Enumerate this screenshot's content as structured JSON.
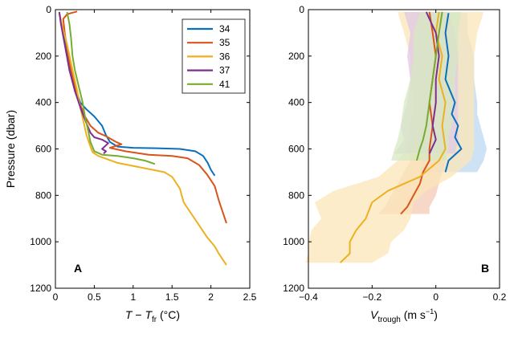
{
  "chart_data": [
    {
      "type": "line",
      "panel": "A",
      "xlabel_parts": [
        "T",
        " − ",
        "T",
        "fr",
        " (°C)"
      ],
      "ylabel": "Pressure (dbar)",
      "xlim": [
        0,
        2.5
      ],
      "ylim": [
        0,
        1200
      ],
      "y_inverted": true,
      "xticks": [
        0,
        0.5,
        1,
        1.5,
        2,
        2.5
      ],
      "xtick_labels": [
        "0",
        "0.5",
        "1",
        "1.5",
        "2",
        "2.5"
      ],
      "yticks": [
        0,
        200,
        400,
        600,
        800,
        1000,
        1200
      ],
      "ytick_labels": [
        "0",
        "200",
        "400",
        "600",
        "800",
        "1000",
        "1200"
      ],
      "legend_position": "top-right",
      "series": [
        {
          "name": "34",
          "color": "#0a6fbd",
          "points": [
            [
              0.05,
              15
            ],
            [
              0.08,
              60
            ],
            [
              0.12,
              140
            ],
            [
              0.18,
              240
            ],
            [
              0.25,
              330
            ],
            [
              0.32,
              400
            ],
            [
              0.4,
              430
            ],
            [
              0.5,
              460
            ],
            [
              0.6,
              500
            ],
            [
              0.65,
              540
            ],
            [
              0.7,
              570
            ],
            [
              0.8,
              590
            ],
            [
              1.0,
              595
            ],
            [
              1.3,
              597
            ],
            [
              1.6,
              600
            ],
            [
              1.8,
              610
            ],
            [
              1.9,
              630
            ],
            [
              1.96,
              660
            ],
            [
              2.0,
              690
            ],
            [
              2.05,
              715
            ]
          ]
        },
        {
          "name": "35",
          "color": "#d9541a",
          "points": [
            [
              0.28,
              8
            ],
            [
              0.2,
              15
            ],
            [
              0.15,
              20
            ],
            [
              0.1,
              40
            ],
            [
              0.12,
              100
            ],
            [
              0.18,
              230
            ],
            [
              0.25,
              330
            ],
            [
              0.32,
              410
            ],
            [
              0.38,
              460
            ],
            [
              0.45,
              500
            ],
            [
              0.55,
              530
            ],
            [
              0.65,
              545
            ],
            [
              0.78,
              570
            ],
            [
              0.85,
              580
            ],
            [
              0.7,
              595
            ],
            [
              0.9,
              610
            ],
            [
              1.2,
              625
            ],
            [
              1.5,
              630
            ],
            [
              1.7,
              640
            ],
            [
              1.85,
              670
            ],
            [
              1.95,
              710
            ],
            [
              2.05,
              760
            ],
            [
              2.1,
              820
            ],
            [
              2.15,
              870
            ],
            [
              2.2,
              920
            ]
          ]
        },
        {
          "name": "36",
          "color": "#edb120",
          "points": [
            [
              0.05,
              10
            ],
            [
              0.08,
              60
            ],
            [
              0.15,
              150
            ],
            [
              0.22,
              260
            ],
            [
              0.28,
              350
            ],
            [
              0.32,
              420
            ],
            [
              0.36,
              480
            ],
            [
              0.4,
              540
            ],
            [
              0.45,
              590
            ],
            [
              0.48,
              615
            ],
            [
              0.55,
              630
            ],
            [
              0.8,
              660
            ],
            [
              1.1,
              680
            ],
            [
              1.4,
              700
            ],
            [
              1.5,
              720
            ],
            [
              1.6,
              770
            ],
            [
              1.65,
              830
            ],
            [
              1.75,
              880
            ],
            [
              1.85,
              930
            ],
            [
              1.95,
              980
            ],
            [
              2.05,
              1020
            ],
            [
              2.1,
              1050
            ],
            [
              2.15,
              1075
            ],
            [
              2.2,
              1100
            ]
          ]
        },
        {
          "name": "37",
          "color": "#7e2f8e",
          "points": [
            [
              0.05,
              10
            ],
            [
              0.07,
              60
            ],
            [
              0.12,
              150
            ],
            [
              0.18,
              260
            ],
            [
              0.25,
              350
            ],
            [
              0.33,
              430
            ],
            [
              0.4,
              490
            ],
            [
              0.45,
              530
            ],
            [
              0.5,
              550
            ],
            [
              0.6,
              560
            ],
            [
              0.68,
              575
            ],
            [
              0.6,
              600
            ],
            [
              0.65,
              610
            ],
            [
              0.62,
              620
            ]
          ]
        },
        {
          "name": "41",
          "color": "#77ac30",
          "points": [
            [
              0.15,
              10
            ],
            [
              0.18,
              60
            ],
            [
              0.2,
              120
            ],
            [
              0.22,
              200
            ],
            [
              0.25,
              260
            ],
            [
              0.3,
              330
            ],
            [
              0.35,
              400
            ],
            [
              0.38,
              460
            ],
            [
              0.42,
              520
            ],
            [
              0.45,
              570
            ],
            [
              0.5,
              610
            ],
            [
              0.6,
              625
            ],
            [
              0.8,
              630
            ],
            [
              1.0,
              640
            ],
            [
              1.15,
              650
            ],
            [
              1.28,
              665
            ]
          ]
        }
      ],
      "annotation": "A"
    },
    {
      "type": "area",
      "panel": "B",
      "xlabel_parts": [
        "V",
        "trough",
        " (m s",
        "−1",
        ")"
      ],
      "xlim": [
        -0.4,
        0.2
      ],
      "ylim": [
        0,
        1200
      ],
      "y_inverted": true,
      "xticks": [
        -0.4,
        -0.2,
        0,
        0.2
      ],
      "xtick_labels": [
        "−0.4",
        "−0.2",
        "0",
        "0.2"
      ],
      "yticks": [
        0,
        200,
        400,
        600,
        800,
        1000,
        1200
      ],
      "ytick_labels": [
        "0",
        "200",
        "400",
        "600",
        "800",
        "1000",
        "1200"
      ],
      "series": [
        {
          "name": "34",
          "color": "#0a6fbd",
          "fill": "#bcd8f0",
          "points": [
            [
              0.04,
              15
            ],
            [
              0.03,
              100
            ],
            [
              0.04,
              200
            ],
            [
              0.03,
              300
            ],
            [
              0.06,
              400
            ],
            [
              0.05,
              450
            ],
            [
              0.07,
              500
            ],
            [
              0.06,
              550
            ],
            [
              0.08,
              600
            ],
            [
              0.04,
              650
            ],
            [
              0.03,
              700
            ]
          ],
          "band": [
            [
              0.0,
              0.1
            ],
            [
              -0.02,
              0.1
            ],
            [
              -0.02,
              0.12
            ],
            [
              -0.03,
              0.12
            ],
            [
              -0.02,
              0.13
            ],
            [
              -0.02,
              0.13
            ],
            [
              -0.02,
              0.14
            ],
            [
              -0.03,
              0.15
            ],
            [
              -0.02,
              0.16
            ],
            [
              -0.04,
              0.15
            ],
            [
              -0.05,
              0.13
            ]
          ]
        },
        {
          "name": "35",
          "color": "#d9541a",
          "fill": "#f3c9b5",
          "points": [
            [
              -0.02,
              10
            ],
            [
              -0.01,
              100
            ],
            [
              0.0,
              200
            ],
            [
              -0.01,
              300
            ],
            [
              -0.02,
              400
            ],
            [
              -0.01,
              500
            ],
            [
              -0.02,
              600
            ],
            [
              -0.02,
              650
            ],
            [
              -0.04,
              700
            ],
            [
              -0.05,
              750
            ],
            [
              -0.07,
              800
            ],
            [
              -0.09,
              850
            ],
            [
              -0.11,
              880
            ]
          ],
          "band": [
            [
              -0.06,
              0.03
            ],
            [
              -0.05,
              0.04
            ],
            [
              -0.05,
              0.05
            ],
            [
              -0.06,
              0.05
            ],
            [
              -0.07,
              0.04
            ],
            [
              -0.06,
              0.05
            ],
            [
              -0.08,
              0.04
            ],
            [
              -0.08,
              0.03
            ],
            [
              -0.1,
              0.02
            ],
            [
              -0.12,
              0.01
            ],
            [
              -0.14,
              0.0
            ],
            [
              -0.16,
              -0.02
            ],
            [
              -0.18,
              -0.02
            ]
          ]
        },
        {
          "name": "36",
          "color": "#edb120",
          "fill": "#fbe6b8",
          "points": [
            [
              0.01,
              10
            ],
            [
              0.0,
              100
            ],
            [
              0.02,
              200
            ],
            [
              0.01,
              300
            ],
            [
              0.03,
              400
            ],
            [
              0.02,
              500
            ],
            [
              0.03,
              600
            ],
            [
              0.01,
              650
            ],
            [
              -0.05,
              720
            ],
            [
              -0.15,
              780
            ],
            [
              -0.2,
              830
            ],
            [
              -0.22,
              900
            ],
            [
              -0.25,
              950
            ],
            [
              -0.27,
              1000
            ],
            [
              -0.27,
              1050
            ],
            [
              -0.3,
              1090
            ]
          ],
          "band": [
            [
              -0.12,
              0.15
            ],
            [
              -0.1,
              0.13
            ],
            [
              -0.08,
              0.12
            ],
            [
              -0.08,
              0.12
            ],
            [
              -0.07,
              0.12
            ],
            [
              -0.08,
              0.12
            ],
            [
              -0.09,
              0.12
            ],
            [
              -0.12,
              0.11
            ],
            [
              -0.18,
              0.05
            ],
            [
              -0.32,
              -0.03
            ],
            [
              -0.38,
              -0.07
            ],
            [
              -0.36,
              -0.08
            ],
            [
              -0.39,
              -0.1
            ],
            [
              -0.4,
              -0.14
            ],
            [
              -0.4,
              -0.15
            ],
            [
              -0.41,
              -0.2
            ]
          ]
        },
        {
          "name": "37",
          "color": "#7e2f8e",
          "fill": "#e1c8e6",
          "points": [
            [
              -0.03,
              10
            ],
            [
              0.0,
              100
            ],
            [
              0.01,
              200
            ],
            [
              0.0,
              300
            ],
            [
              0.0,
              400
            ],
            [
              -0.01,
              500
            ],
            [
              0.0,
              560
            ],
            [
              -0.02,
              620
            ]
          ],
          "band": [
            [
              -0.1,
              0.04
            ],
            [
              -0.08,
              0.06
            ],
            [
              -0.09,
              0.07
            ],
            [
              -0.08,
              0.07
            ],
            [
              -0.09,
              0.07
            ],
            [
              -0.11,
              0.07
            ],
            [
              -0.1,
              0.07
            ],
            [
              -0.13,
              0.06
            ]
          ]
        },
        {
          "name": "41",
          "color": "#77ac30",
          "fill": "#d6e8c1",
          "points": [
            [
              0.02,
              10
            ],
            [
              0.01,
              100
            ],
            [
              0.0,
              200
            ],
            [
              -0.01,
              300
            ],
            [
              -0.02,
              400
            ],
            [
              -0.03,
              500
            ],
            [
              -0.04,
              560
            ],
            [
              -0.05,
              600
            ],
            [
              -0.06,
              650
            ]
          ],
          "band": [
            [
              -0.05,
              0.08
            ],
            [
              -0.07,
              0.07
            ],
            [
              -0.07,
              0.07
            ],
            [
              -0.08,
              0.06
            ],
            [
              -0.1,
              0.06
            ],
            [
              -0.11,
              0.05
            ],
            [
              -0.12,
              0.04
            ],
            [
              -0.13,
              0.04
            ],
            [
              -0.14,
              0.03
            ]
          ]
        }
      ],
      "annotation": "B"
    }
  ]
}
